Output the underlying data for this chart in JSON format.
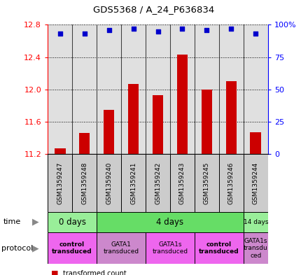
{
  "title": "GDS5368 / A_24_P636834",
  "samples": [
    "GSM1359247",
    "GSM1359248",
    "GSM1359240",
    "GSM1359241",
    "GSM1359242",
    "GSM1359243",
    "GSM1359245",
    "GSM1359246",
    "GSM1359244"
  ],
  "bar_values": [
    11.27,
    11.46,
    11.75,
    12.07,
    11.93,
    12.43,
    12.0,
    12.1,
    11.47
  ],
  "dot_values": [
    93,
    93,
    96,
    97,
    95,
    97,
    96,
    97,
    93
  ],
  "ylim": [
    11.2,
    12.8
  ],
  "y2lim": [
    0,
    100
  ],
  "yticks": [
    11.2,
    11.6,
    12.0,
    12.4,
    12.8
  ],
  "y2ticks": [
    0,
    25,
    50,
    75,
    100
  ],
  "bar_color": "#cc0000",
  "dot_color": "#0000cc",
  "bar_bottom": 11.2,
  "time_groups": [
    {
      "label": "0 days",
      "start": 0,
      "end": 2,
      "color": "#99ee99"
    },
    {
      "label": "4 days",
      "start": 2,
      "end": 8,
      "color": "#66dd66"
    },
    {
      "label": "14 days",
      "start": 8,
      "end": 9,
      "color": "#99ee99"
    }
  ],
  "protocol_groups": [
    {
      "label": "control\ntransduced",
      "start": 0,
      "end": 2,
      "color": "#ee66ee",
      "bold": true
    },
    {
      "label": "GATA1\ntransduced",
      "start": 2,
      "end": 4,
      "color": "#cc88cc",
      "bold": false
    },
    {
      "label": "GATA1s\ntransduced",
      "start": 4,
      "end": 6,
      "color": "#ee66ee",
      "bold": false
    },
    {
      "label": "control\ntransduced",
      "start": 6,
      "end": 8,
      "color": "#ee66ee",
      "bold": true
    },
    {
      "label": "GATA1s\ntransdu\nced",
      "start": 8,
      "end": 9,
      "color": "#cc88cc",
      "bold": false
    }
  ],
  "sample_bg": "#cccccc",
  "fig_width": 4.4,
  "fig_height": 3.93,
  "dpi": 100
}
